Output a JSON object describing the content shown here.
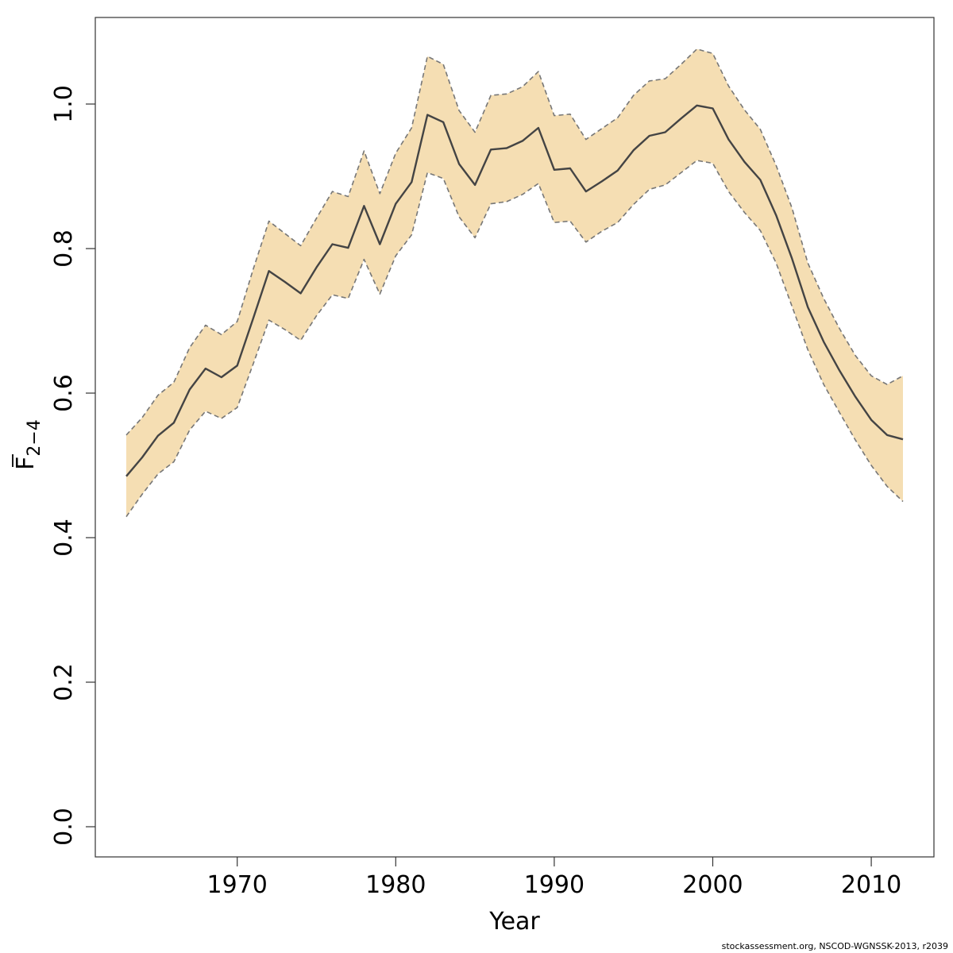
{
  "chart_data": {
    "type": "line",
    "xlabel": "Year",
    "ylabel_base": "F",
    "ylabel_subscript": "2−4",
    "ylim": [
      0,
      1.1
    ],
    "xlim": [
      1962,
      2014
    ],
    "x_ticks": [
      1970,
      1980,
      1990,
      2000,
      2010
    ],
    "y_ticks": [
      "0.0",
      "0.2",
      "0.4",
      "0.6",
      "0.8",
      "1.0"
    ],
    "grid": false,
    "colors": {
      "band": "#f5deb3",
      "line": "#444444",
      "bound": "#777777"
    },
    "x": [
      1963,
      1964,
      1965,
      1966,
      1967,
      1968,
      1969,
      1970,
      1971,
      1972,
      1973,
      1974,
      1975,
      1976,
      1977,
      1978,
      1979,
      1980,
      1981,
      1982,
      1983,
      1984,
      1985,
      1986,
      1987,
      1988,
      1989,
      1990,
      1991,
      1992,
      1993,
      1994,
      1995,
      1996,
      1997,
      1998,
      1999,
      2000,
      2001,
      2002,
      2003,
      2004,
      2005,
      2006,
      2007,
      2008,
      2009,
      2010,
      2011,
      2012
    ],
    "series": [
      {
        "role": "estimate",
        "values": [
          0.485,
          0.511,
          0.541,
          0.559,
          0.605,
          0.634,
          0.622,
          0.638,
          0.703,
          0.769,
          0.754,
          0.738,
          0.774,
          0.806,
          0.801,
          0.859,
          0.806,
          0.862,
          0.892,
          0.985,
          0.975,
          0.917,
          0.888,
          0.937,
          0.939,
          0.949,
          0.967,
          0.909,
          0.911,
          0.879,
          0.893,
          0.908,
          0.936,
          0.956,
          0.961,
          0.98,
          0.998,
          0.994,
          0.951,
          0.92,
          0.895,
          0.846,
          0.786,
          0.719,
          0.671,
          0.631,
          0.595,
          0.563,
          0.542,
          0.536
        ]
      },
      {
        "role": "upper",
        "values": [
          0.542,
          0.566,
          0.597,
          0.615,
          0.663,
          0.694,
          0.681,
          0.699,
          0.771,
          0.838,
          0.821,
          0.804,
          0.842,
          0.879,
          0.872,
          0.935,
          0.876,
          0.932,
          0.967,
          1.066,
          1.055,
          0.991,
          0.961,
          1.012,
          1.014,
          1.024,
          1.045,
          0.984,
          0.986,
          0.951,
          0.966,
          0.981,
          1.012,
          1.032,
          1.035,
          1.055,
          1.076,
          1.07,
          1.025,
          0.992,
          0.965,
          0.915,
          0.856,
          0.78,
          0.731,
          0.689,
          0.652,
          0.624,
          0.612,
          0.624
        ]
      },
      {
        "role": "lower",
        "values": [
          0.429,
          0.46,
          0.488,
          0.505,
          0.549,
          0.575,
          0.565,
          0.58,
          0.64,
          0.701,
          0.688,
          0.673,
          0.707,
          0.736,
          0.731,
          0.785,
          0.737,
          0.79,
          0.819,
          0.905,
          0.897,
          0.844,
          0.815,
          0.862,
          0.865,
          0.875,
          0.89,
          0.836,
          0.838,
          0.809,
          0.824,
          0.836,
          0.861,
          0.882,
          0.888,
          0.905,
          0.922,
          0.918,
          0.879,
          0.85,
          0.825,
          0.78,
          0.72,
          0.66,
          0.612,
          0.573,
          0.535,
          0.5,
          0.471,
          0.45
        ]
      }
    ]
  },
  "footer": {
    "credit": "stockassessment.org, NSCOD-WGNSSK-2013, r2039"
  }
}
